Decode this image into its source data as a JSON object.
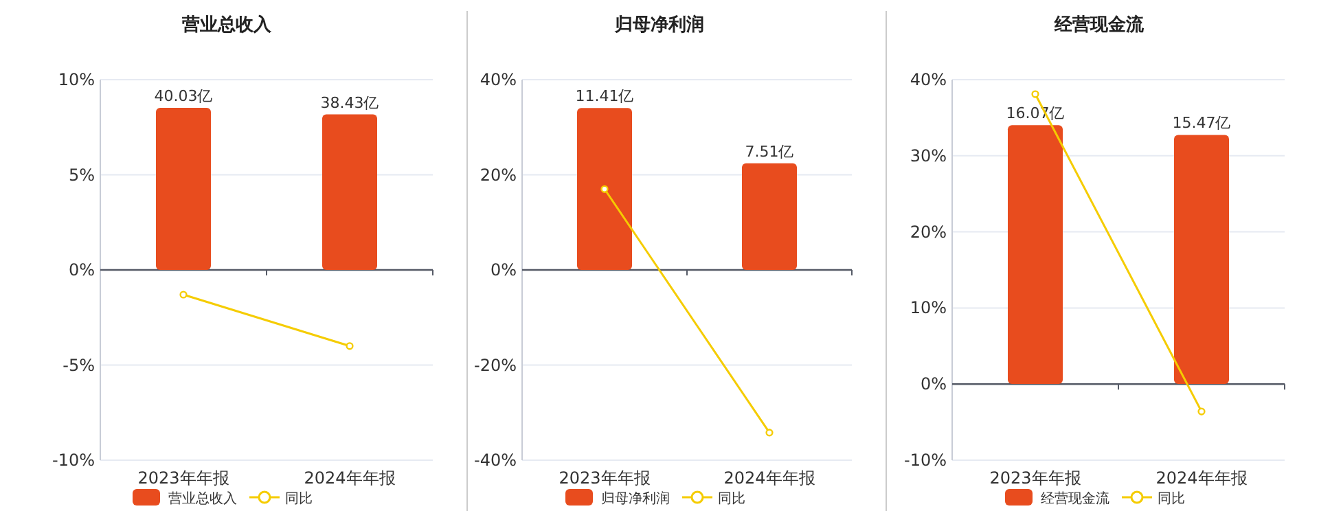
{
  "chart_data": [
    {
      "type": "bar",
      "title": "营业总收入",
      "categories": [
        "2023年年报",
        "2024年年报"
      ],
      "series": [
        {
          "name": "营业总收入",
          "axis": "y2",
          "color": "#e84c1e",
          "values": [
            40.03,
            38.43
          ],
          "value_labels": [
            "40.03亿",
            "38.43亿"
          ]
        },
        {
          "name": "同比",
          "type": "line",
          "color": "#f5cc00",
          "values": [
            -1.3,
            -4.0
          ]
        }
      ],
      "ylim": [
        -10,
        10
      ],
      "yticks": [
        {
          "value": 10,
          "label": "10%"
        },
        {
          "value": 5,
          "label": "5%"
        },
        {
          "value": 0,
          "label": "0%"
        },
        {
          "value": -5,
          "label": "-5%"
        },
        {
          "value": -10,
          "label": "-10%"
        }
      ],
      "y2lim": [
        -47,
        47
      ],
      "grid": "y",
      "legend": "bottom",
      "marker": "circle"
    },
    {
      "type": "bar",
      "title": "归母净利润",
      "categories": [
        "2023年年报",
        "2024年年报"
      ],
      "series": [
        {
          "name": "归母净利润",
          "axis": "y2",
          "color": "#e84c1e",
          "values": [
            11.41,
            7.51
          ],
          "value_labels": [
            "11.41亿",
            "7.51亿"
          ]
        },
        {
          "name": "同比",
          "type": "line",
          "color": "#f5cc00",
          "values": [
            17.0,
            -34.2
          ]
        }
      ],
      "ylim": [
        -40,
        40
      ],
      "yticks": [
        {
          "value": 40,
          "label": "40%"
        },
        {
          "value": 20,
          "label": "20%"
        },
        {
          "value": 0,
          "label": "0%"
        },
        {
          "value": -20,
          "label": "-20%"
        },
        {
          "value": -40,
          "label": "-40%"
        }
      ],
      "y2lim": [
        -13.4,
        13.4
      ],
      "grid": "y",
      "legend": "bottom",
      "marker": "circle"
    },
    {
      "type": "bar",
      "title": "经营现金流",
      "categories": [
        "2023年年报",
        "2024年年报"
      ],
      "series": [
        {
          "name": "经营现金流",
          "axis": "y2",
          "color": "#e84c1e",
          "values": [
            16.07,
            15.47
          ],
          "value_labels": [
            "16.07亿",
            "15.47亿"
          ]
        },
        {
          "name": "同比",
          "type": "line",
          "color": "#f5cc00",
          "values": [
            38.1,
            -3.6
          ]
        }
      ],
      "ylim": [
        -10,
        40
      ],
      "yticks": [
        {
          "value": 40,
          "label": "40%"
        },
        {
          "value": 30,
          "label": "30%"
        },
        {
          "value": 20,
          "label": "20%"
        },
        {
          "value": 10,
          "label": "10%"
        },
        {
          "value": 0,
          "label": "0%"
        },
        {
          "value": -10,
          "label": "-10%"
        }
      ],
      "y2lim": [
        -4.73,
        18.9
      ],
      "grid": "y",
      "legend": "bottom",
      "marker": "circle"
    }
  ]
}
